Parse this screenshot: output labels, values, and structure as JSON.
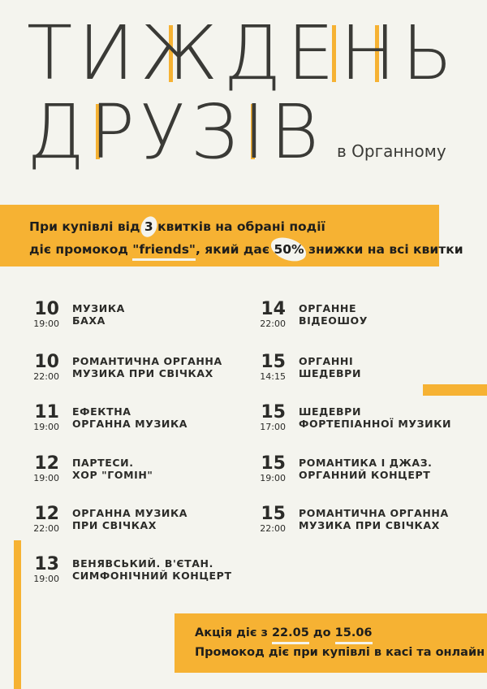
{
  "title": {
    "line1": [
      "Т",
      "И",
      "Ж",
      "Д",
      "Е",
      "Н",
      "Ь"
    ],
    "line2": [
      "Д",
      "Р",
      "У",
      "З",
      "І",
      "В"
    ],
    "subtitle": "в Органному"
  },
  "promo": {
    "line1_pre": "При купівлі від",
    "count": "3",
    "line1_post": "квитків на обрані події",
    "line2_pre": "діє промокод",
    "code": "\"friends\"",
    "line2_mid": ", який дає",
    "discount": "50%",
    "line2_post": "знижки на всі квитки"
  },
  "events_left": [
    {
      "day": "10",
      "time": "19:00",
      "title1": "МУЗИКА",
      "title2": "БАХА"
    },
    {
      "day": "10",
      "time": "22:00",
      "title1": "РОМАНТИЧНА ОРГАННА",
      "title2": "МУЗИКА ПРИ СВІЧКАХ"
    },
    {
      "day": "11",
      "time": "19:00",
      "title1": "ЕФЕКТНА",
      "title2": "ОРГАННА МУЗИКА"
    },
    {
      "day": "12",
      "time": "19:00",
      "title1": "ПАРТЕСИ.",
      "title2": "ХОР \"ГОМІН\""
    },
    {
      "day": "12",
      "time": "22:00",
      "title1": "ОРГАННА МУЗИКА",
      "title2": "ПРИ СВІЧКАХ"
    },
    {
      "day": "13",
      "time": "19:00",
      "title1": "ВЕНЯВСЬКИЙ. В'ЄТАН.",
      "title2": "СИМФОНІЧНИЙ КОНЦЕРТ"
    }
  ],
  "events_right": [
    {
      "day": "14",
      "time": "22:00",
      "title1": "ОРГАННЕ",
      "title2": "ВІДЕОШОУ"
    },
    {
      "day": "15",
      "time": "14:15",
      "title1": "ОРГАННІ",
      "title2": "ШЕДЕВРИ"
    },
    {
      "day": "15",
      "time": "17:00",
      "title1": "ШЕДЕВРИ",
      "title2": "ФОРТЕПІАННОЇ МУЗИКИ"
    },
    {
      "day": "15",
      "time": "19:00",
      "title1": "РОМАНТИКА І ДЖАЗ.",
      "title2": "ОРГАННИЙ КОНЦЕРТ"
    },
    {
      "day": "15",
      "time": "22:00",
      "title1": "РОМАНТИЧНА ОРГАННА",
      "title2": "МУЗИКА ПРИ СВІЧКАХ"
    }
  ],
  "footer": {
    "line1_pre": "Акція діє з",
    "start": "22.05",
    "line1_mid": "до",
    "end": "15.06",
    "line2": "Промокод діє при купівлі в касі та онлайн"
  },
  "colors": {
    "background": "#f4f4ee",
    "accent": "#f6b233",
    "text": "#2b2b28"
  }
}
